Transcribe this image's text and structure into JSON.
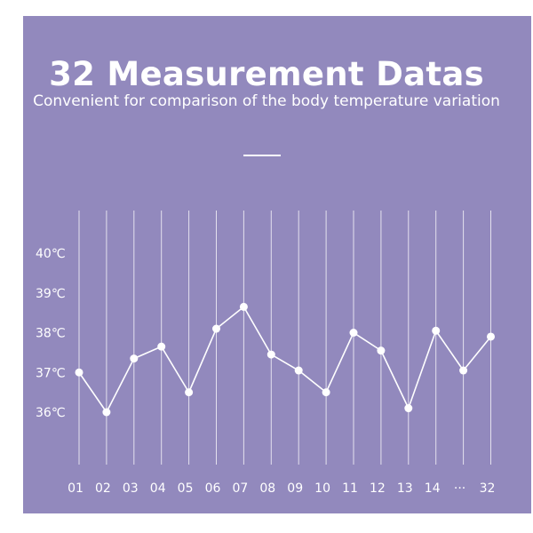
{
  "header": {
    "title": "32 Measurement Datas",
    "subtitle": "Convenient for comparison of the body temperature variation"
  },
  "chart_data": {
    "type": "line",
    "categories": [
      "01",
      "02",
      "03",
      "04",
      "05",
      "06",
      "07",
      "08",
      "09",
      "10",
      "11",
      "12",
      "13",
      "14",
      "···",
      "32"
    ],
    "values": [
      37.0,
      36.0,
      37.35,
      37.65,
      36.5,
      38.1,
      38.65,
      37.45,
      37.05,
      36.5,
      38.0,
      37.55,
      36.1,
      38.05,
      37.05,
      37.9
    ],
    "y_ticks": [
      "36℃",
      "37℃",
      "38℃",
      "39℃",
      "40℃"
    ],
    "ylim": [
      36,
      40
    ],
    "grid": "vertical",
    "colors": {
      "background": "#9289bd",
      "line": "#ffffff"
    }
  }
}
